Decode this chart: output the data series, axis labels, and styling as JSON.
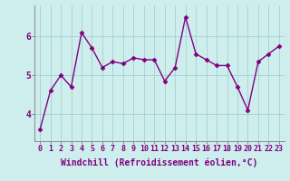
{
  "x": [
    0,
    1,
    2,
    3,
    4,
    5,
    6,
    7,
    8,
    9,
    10,
    11,
    12,
    13,
    14,
    15,
    16,
    17,
    18,
    19,
    20,
    21,
    22,
    23
  ],
  "y": [
    3.6,
    4.6,
    5.0,
    4.7,
    6.1,
    5.7,
    5.2,
    5.35,
    5.3,
    5.45,
    5.4,
    5.4,
    4.85,
    5.2,
    6.5,
    5.55,
    5.4,
    5.25,
    5.25,
    4.7,
    4.1,
    5.35,
    5.55,
    5.75
  ],
  "line_color": "#800080",
  "marker": "D",
  "marker_size": 2.5,
  "background_color": "#ceeeed",
  "grid_color": "#aad4d4",
  "xlabel": "Windchill (Refroidissement éolien,°C)",
  "xlim": [
    -0.5,
    23.5
  ],
  "ylim": [
    3.3,
    6.8
  ],
  "yticks": [
    4,
    5,
    6
  ],
  "tick_fontsize": 6,
  "label_fontsize": 7,
  "line_width": 1.0
}
